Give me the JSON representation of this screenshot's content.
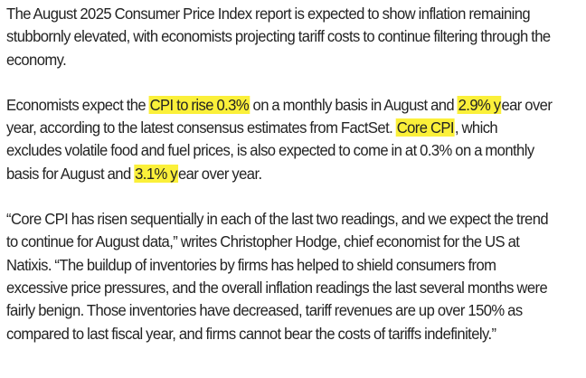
{
  "article": {
    "p1": {
      "text": "The August 2025 Consumer Price Index report is expected to show inflation remaining stubbornly elevated, with economists projecting tariff costs to continue filtering through the economy."
    },
    "p2": {
      "t1": "Economists expect the ",
      "hl1": "CPI to rise 0.3%",
      "t2": " on a monthly basis in August and ",
      "hl2": "2.9% y",
      "t3": "ear over year, according to the latest consensus estimates from FactSet. ",
      "hl3": "Core CPI",
      "t4": ", which excludes volatile food and fuel prices, is also expected to come in at 0.3% on a monthly basis for August and ",
      "hl4": "3.1% y",
      "t5": "ear over year."
    },
    "p3": {
      "text": "“Core CPI has risen sequentially in each of the last two readings, and we expect the trend to continue for August data,” writes Christopher Hodge, chief economist for the US at Natixis. “The buildup of inventories by firms has helped to shield consumers from excessive price pressures, and the overall inflation readings the last several months were fairly benign. Those inventories have decreased, tariff revenues are up over 150% as compared to last fiscal year, and firms cannot bear the costs of tariffs indefinitely.”"
    }
  },
  "colors": {
    "text": "#232323",
    "highlight": "#fbf03a",
    "background": "#ffffff"
  }
}
